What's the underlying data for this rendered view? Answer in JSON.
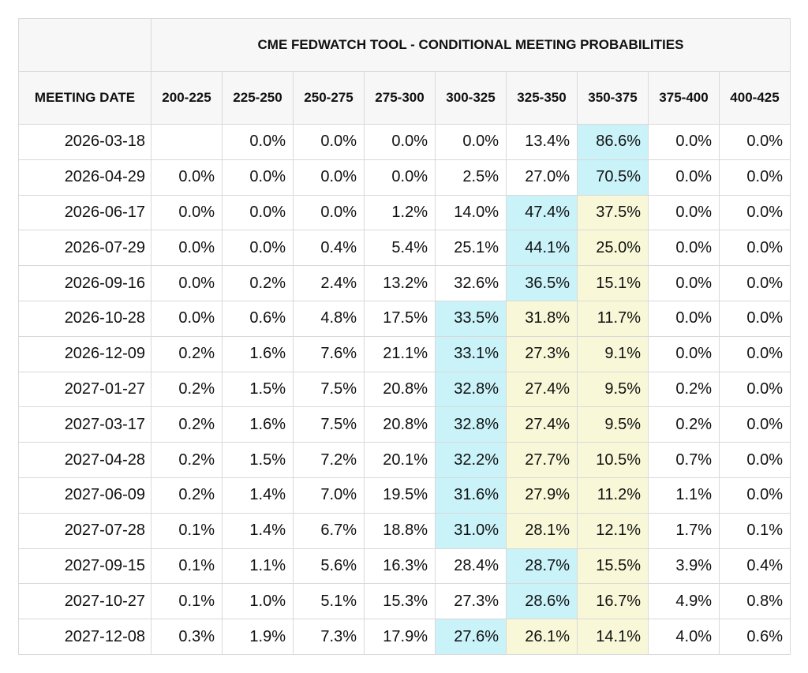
{
  "table": {
    "title": "CME FEDWATCH TOOL - CONDITIONAL MEETING PROBABILITIES",
    "meeting_date_header": "MEETING DATE",
    "columns": [
      "200-225",
      "225-250",
      "250-275",
      "275-300",
      "300-325",
      "325-350",
      "350-375",
      "375-400",
      "400-425"
    ],
    "colors": {
      "highest": "#c9f2f9",
      "second": "#f8f8d8",
      "border": "#d9d9d9",
      "header_bg": "#f7f7f7"
    },
    "rows": [
      {
        "date": "2026-03-18",
        "values": [
          "",
          "0.0%",
          "0.0%",
          "0.0%",
          "0.0%",
          "13.4%",
          "86.6%",
          "0.0%",
          "0.0%"
        ],
        "highlight": {
          "6": "max"
        }
      },
      {
        "date": "2026-04-29",
        "values": [
          "0.0%",
          "0.0%",
          "0.0%",
          "0.0%",
          "2.5%",
          "27.0%",
          "70.5%",
          "0.0%",
          "0.0%"
        ],
        "highlight": {
          "6": "max"
        }
      },
      {
        "date": "2026-06-17",
        "values": [
          "0.0%",
          "0.0%",
          "0.0%",
          "1.2%",
          "14.0%",
          "47.4%",
          "37.5%",
          "0.0%",
          "0.0%"
        ],
        "highlight": {
          "5": "max",
          "6": "next"
        }
      },
      {
        "date": "2026-07-29",
        "values": [
          "0.0%",
          "0.0%",
          "0.4%",
          "5.4%",
          "25.1%",
          "44.1%",
          "25.0%",
          "0.0%",
          "0.0%"
        ],
        "highlight": {
          "5": "max",
          "6": "next"
        }
      },
      {
        "date": "2026-09-16",
        "values": [
          "0.0%",
          "0.2%",
          "2.4%",
          "13.2%",
          "32.6%",
          "36.5%",
          "15.1%",
          "0.0%",
          "0.0%"
        ],
        "highlight": {
          "5": "max",
          "6": "next"
        }
      },
      {
        "date": "2026-10-28",
        "values": [
          "0.0%",
          "0.6%",
          "4.8%",
          "17.5%",
          "33.5%",
          "31.8%",
          "11.7%",
          "0.0%",
          "0.0%"
        ],
        "highlight": {
          "4": "max",
          "5": "next",
          "6": "next"
        }
      },
      {
        "date": "2026-12-09",
        "values": [
          "0.2%",
          "1.6%",
          "7.6%",
          "21.1%",
          "33.1%",
          "27.3%",
          "9.1%",
          "0.0%",
          "0.0%"
        ],
        "highlight": {
          "4": "max",
          "5": "next",
          "6": "next"
        }
      },
      {
        "date": "2027-01-27",
        "values": [
          "0.2%",
          "1.5%",
          "7.5%",
          "20.8%",
          "32.8%",
          "27.4%",
          "9.5%",
          "0.2%",
          "0.0%"
        ],
        "highlight": {
          "4": "max",
          "5": "next",
          "6": "next"
        }
      },
      {
        "date": "2027-03-17",
        "values": [
          "0.2%",
          "1.6%",
          "7.5%",
          "20.8%",
          "32.8%",
          "27.4%",
          "9.5%",
          "0.2%",
          "0.0%"
        ],
        "highlight": {
          "4": "max",
          "5": "next",
          "6": "next"
        }
      },
      {
        "date": "2027-04-28",
        "values": [
          "0.2%",
          "1.5%",
          "7.2%",
          "20.1%",
          "32.2%",
          "27.7%",
          "10.5%",
          "0.7%",
          "0.0%"
        ],
        "highlight": {
          "4": "max",
          "5": "next",
          "6": "next"
        }
      },
      {
        "date": "2027-06-09",
        "values": [
          "0.2%",
          "1.4%",
          "7.0%",
          "19.5%",
          "31.6%",
          "27.9%",
          "11.2%",
          "1.1%",
          "0.0%"
        ],
        "highlight": {
          "4": "max",
          "5": "next",
          "6": "next"
        }
      },
      {
        "date": "2027-07-28",
        "values": [
          "0.1%",
          "1.4%",
          "6.7%",
          "18.8%",
          "31.0%",
          "28.1%",
          "12.1%",
          "1.7%",
          "0.1%"
        ],
        "highlight": {
          "4": "max",
          "5": "next",
          "6": "next"
        }
      },
      {
        "date": "2027-09-15",
        "values": [
          "0.1%",
          "1.1%",
          "5.6%",
          "16.3%",
          "28.4%",
          "28.7%",
          "15.5%",
          "3.9%",
          "0.4%"
        ],
        "highlight": {
          "5": "max",
          "6": "next"
        }
      },
      {
        "date": "2027-10-27",
        "values": [
          "0.1%",
          "1.0%",
          "5.1%",
          "15.3%",
          "27.3%",
          "28.6%",
          "16.7%",
          "4.9%",
          "0.8%"
        ],
        "highlight": {
          "5": "max",
          "6": "next"
        }
      },
      {
        "date": "2027-12-08",
        "values": [
          "0.3%",
          "1.9%",
          "7.3%",
          "17.9%",
          "27.6%",
          "26.1%",
          "14.1%",
          "4.0%",
          "0.6%"
        ],
        "highlight": {
          "4": "max",
          "5": "next",
          "6": "next"
        }
      }
    ]
  }
}
